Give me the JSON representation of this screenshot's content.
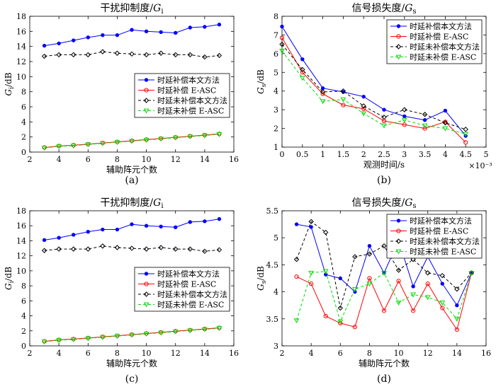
{
  "chart_data": [
    {
      "id": "a",
      "type": "line",
      "panel_label": "(a)",
      "title_text": "干扰抑制度/",
      "title_sym": "G",
      "title_sub": "i",
      "xlabel": "辅助阵元个数",
      "ylabel_sym": "G",
      "ylabel_sub": "i",
      "ylabel_unit": "/dB",
      "xlim": [
        2,
        16
      ],
      "ylim": [
        0,
        18
      ],
      "xticks": [
        2,
        4,
        6,
        8,
        10,
        12,
        14,
        16
      ],
      "xticklabels": [
        "2",
        "4",
        "6",
        "8",
        "10",
        "12",
        "14",
        "16"
      ],
      "yticks": [
        0,
        2,
        4,
        6,
        8,
        10,
        12,
        14,
        16,
        18
      ],
      "yticklabels": [
        "0",
        "2",
        "4",
        "6",
        "8",
        "10",
        "12",
        "14",
        "16",
        "18"
      ],
      "x_exponent_label": "",
      "legend_position": "lower-right",
      "x": [
        3,
        4,
        5,
        6,
        7,
        8,
        9,
        10,
        11,
        12,
        13,
        14,
        15
      ],
      "series": [
        {
          "name": "时延补偿本文方法",
          "color": "#0000ff",
          "marker": "dot",
          "dashed": false,
          "values": [
            14.1,
            14.4,
            14.8,
            15.2,
            15.5,
            15.5,
            16.2,
            16.0,
            15.9,
            15.8,
            16.5,
            16.6,
            16.9
          ]
        },
        {
          "name": "时延补偿 E-ASC",
          "color": "#ff0000",
          "marker": "circle",
          "dashed": false,
          "values": [
            0.6,
            0.8,
            0.9,
            1.05,
            1.2,
            1.35,
            1.5,
            1.65,
            1.8,
            1.95,
            2.1,
            2.25,
            2.4
          ]
        },
        {
          "name": "时延未补偿本文方法",
          "color": "#000000",
          "marker": "diamond",
          "dashed": true,
          "values": [
            12.7,
            12.9,
            12.9,
            12.9,
            13.3,
            13.1,
            13.0,
            12.9,
            13.1,
            12.9,
            12.9,
            12.6,
            12.8
          ]
        },
        {
          "name": "时延未补偿 E-ASC",
          "color": "#00dd00",
          "marker": "triangle",
          "dashed": true,
          "values": [
            0.55,
            0.75,
            0.85,
            1.0,
            1.15,
            1.3,
            1.45,
            1.6,
            1.75,
            1.9,
            2.05,
            2.2,
            2.35
          ]
        }
      ]
    },
    {
      "id": "b",
      "type": "line",
      "panel_label": "(b)",
      "title_text": "信号损失度/",
      "title_sym": "G",
      "title_sub": "s",
      "xlabel": "观测时间/s",
      "ylabel_sym": "G",
      "ylabel_sub": "s",
      "ylabel_unit": "/dB",
      "xlim": [
        0,
        5
      ],
      "ylim": [
        1,
        8
      ],
      "xticks": [
        0,
        0.5,
        1,
        1.5,
        2,
        2.5,
        3,
        3.5,
        4,
        4.5,
        5
      ],
      "xticklabels": [
        "0",
        "0.5",
        "1",
        "1.5",
        "2",
        "2.5",
        "3",
        "3.5",
        "4",
        "4.5",
        "5"
      ],
      "yticks": [
        1,
        2,
        3,
        4,
        5,
        6,
        7,
        8
      ],
      "yticklabels": [
        "1",
        "2",
        "3",
        "4",
        "5",
        "6",
        "7",
        "8"
      ],
      "x_exponent_label": "×10⁻³",
      "legend_position": "top-right",
      "x": [
        0,
        0.5,
        1,
        1.5,
        2,
        2.5,
        3,
        3.5,
        4,
        4.5
      ],
      "series": [
        {
          "name": "时延补偿本文方法",
          "color": "#0000ff",
          "marker": "dot",
          "dashed": false,
          "values": [
            7.45,
            5.7,
            4.15,
            3.95,
            3.7,
            3.0,
            2.65,
            2.45,
            2.95,
            1.6
          ]
        },
        {
          "name": "时延补偿 E-ASC",
          "color": "#ff0000",
          "marker": "circle",
          "dashed": false,
          "values": [
            6.85,
            5.0,
            3.85,
            3.25,
            3.05,
            2.4,
            2.2,
            2.0,
            2.35,
            1.25
          ]
        },
        {
          "name": "时延未补偿本文方法",
          "color": "#000000",
          "marker": "diamond",
          "dashed": true,
          "values": [
            6.5,
            5.15,
            3.95,
            4.0,
            3.2,
            2.6,
            3.0,
            2.75,
            2.3,
            1.95
          ]
        },
        {
          "name": "时延未补偿 E-ASC",
          "color": "#00dd00",
          "marker": "triangle",
          "dashed": true,
          "values": [
            6.15,
            4.7,
            3.45,
            3.55,
            2.8,
            2.15,
            2.45,
            2.15,
            2.0,
            1.7
          ]
        }
      ]
    },
    {
      "id": "c",
      "type": "line",
      "panel_label": "(c)",
      "title_text": "干扰抑制度/",
      "title_sym": "G",
      "title_sub": "i",
      "xlabel": "辅助阵元个数",
      "ylabel_sym": "G",
      "ylabel_sub": "i",
      "ylabel_unit": "/dB",
      "xlim": [
        2,
        16
      ],
      "ylim": [
        0,
        18
      ],
      "xticks": [
        2,
        4,
        6,
        8,
        10,
        12,
        14,
        16
      ],
      "xticklabels": [
        "2",
        "4",
        "6",
        "8",
        "10",
        "12",
        "14",
        "16"
      ],
      "yticks": [
        0,
        2,
        4,
        6,
        8,
        10,
        12,
        14,
        16,
        18
      ],
      "yticklabels": [
        "0",
        "2",
        "4",
        "6",
        "8",
        "10",
        "12",
        "14",
        "16",
        "18"
      ],
      "x_exponent_label": "",
      "legend_position": "lower-right",
      "x": [
        3,
        4,
        5,
        6,
        7,
        8,
        9,
        10,
        11,
        12,
        13,
        14,
        15
      ],
      "series": [
        {
          "name": "时延补偿本文方法",
          "color": "#0000ff",
          "marker": "dot",
          "dashed": false,
          "values": [
            14.1,
            14.4,
            14.8,
            15.2,
            15.5,
            15.5,
            16.2,
            16.0,
            15.9,
            15.8,
            16.5,
            16.6,
            16.9
          ]
        },
        {
          "name": "时延补偿 E-ASC",
          "color": "#ff0000",
          "marker": "circle",
          "dashed": false,
          "values": [
            0.6,
            0.8,
            0.9,
            1.05,
            1.2,
            1.35,
            1.5,
            1.65,
            1.8,
            1.95,
            2.1,
            2.25,
            2.4
          ]
        },
        {
          "name": "时延未补偿本文方法",
          "color": "#000000",
          "marker": "diamond",
          "dashed": true,
          "values": [
            12.7,
            12.9,
            12.9,
            12.9,
            13.3,
            13.1,
            13.0,
            12.9,
            13.1,
            12.9,
            12.9,
            12.6,
            12.8
          ]
        },
        {
          "name": "时延未补偿 E-ASC",
          "color": "#00dd00",
          "marker": "triangle",
          "dashed": true,
          "values": [
            0.55,
            0.75,
            0.85,
            1.0,
            1.15,
            1.3,
            1.45,
            1.6,
            1.75,
            1.9,
            2.05,
            2.2,
            2.35
          ]
        }
      ]
    },
    {
      "id": "d",
      "type": "line",
      "panel_label": "(d)",
      "title_text": "信号损失度/",
      "title_sym": "G",
      "title_sub": "s",
      "xlabel": "辅助阵元个数",
      "ylabel_sym": "G",
      "ylabel_sub": "s",
      "ylabel_unit": "/dB",
      "xlim": [
        2,
        16
      ],
      "ylim": [
        3,
        5.5
      ],
      "xticks": [
        2,
        4,
        6,
        8,
        10,
        12,
        14,
        16
      ],
      "xticklabels": [
        "2",
        "4",
        "6",
        "8",
        "10",
        "12",
        "14",
        "16"
      ],
      "yticks": [
        3,
        3.5,
        4,
        4.5,
        5,
        5.5
      ],
      "yticklabels": [
        "3",
        "3.5",
        "4",
        "4.5",
        "5",
        "5.5"
      ],
      "x_exponent_label": "",
      "legend_position": "top-right",
      "x": [
        3,
        4,
        5,
        6,
        7,
        8,
        9,
        10,
        11,
        12,
        13,
        14,
        15
      ],
      "series": [
        {
          "name": "时延补偿本文方法",
          "color": "#0000ff",
          "marker": "dot",
          "dashed": false,
          "values": [
            5.25,
            5.2,
            4.32,
            4.25,
            4.0,
            4.85,
            4.35,
            4.95,
            4.1,
            4.65,
            4.15,
            3.75,
            4.35
          ]
        },
        {
          "name": "时延补偿 E-ASC",
          "color": "#ff0000",
          "marker": "circle",
          "dashed": false,
          "values": [
            4.28,
            4.15,
            3.55,
            3.42,
            3.35,
            4.25,
            3.65,
            4.2,
            3.65,
            4.15,
            3.7,
            3.3,
            4.35
          ]
        },
        {
          "name": "时延未补偿本文方法",
          "color": "#000000",
          "marker": "diamond",
          "dashed": true,
          "values": [
            4.6,
            5.3,
            5.1,
            3.7,
            4.65,
            4.7,
            4.85,
            4.4,
            4.6,
            4.35,
            4.3,
            4.05,
            4.35
          ]
        },
        {
          "name": "时延未补偿 E-ASC",
          "color": "#00dd00",
          "marker": "triangle",
          "dashed": true,
          "values": [
            3.47,
            4.35,
            4.38,
            3.45,
            4.05,
            4.15,
            4.35,
            3.8,
            3.95,
            3.9,
            3.8,
            3.5,
            4.35
          ]
        }
      ]
    }
  ]
}
